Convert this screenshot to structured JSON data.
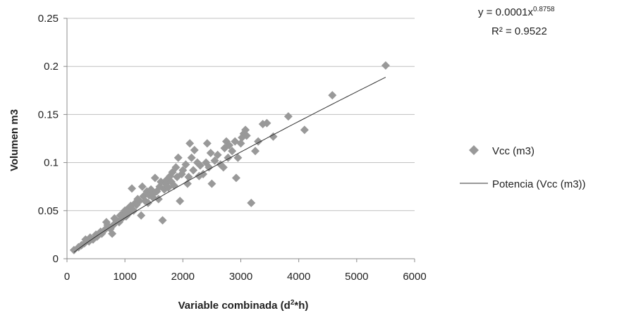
{
  "chart_data": {
    "type": "scatter",
    "title": "",
    "xlabel": "Variable combinada (d²*h)",
    "ylabel": "Volumen m3",
    "xlim": [
      0,
      6000
    ],
    "ylim": [
      0,
      0.25
    ],
    "xticks": [
      0,
      1000,
      2000,
      3000,
      4000,
      5000,
      6000
    ],
    "yticks": [
      0,
      0.05,
      0.1,
      0.15,
      0.2,
      0.25
    ],
    "xtick_labels": [
      "0",
      "1000",
      "2000",
      "3000",
      "4000",
      "5000",
      "6000"
    ],
    "ytick_labels": [
      "0",
      "0.05",
      "0.1",
      "0.15",
      "0.2",
      "0.25"
    ],
    "grid": "horizontal",
    "legend_position": "right",
    "series": [
      {
        "name": "Vcc (m3)",
        "kind": "scatter",
        "marker": "diamond",
        "color": "#999999",
        "points": [
          [
            120,
            0.009
          ],
          [
            200,
            0.012
          ],
          [
            250,
            0.014
          ],
          [
            300,
            0.016
          ],
          [
            320,
            0.02
          ],
          [
            380,
            0.018
          ],
          [
            400,
            0.022
          ],
          [
            450,
            0.02
          ],
          [
            500,
            0.025
          ],
          [
            520,
            0.023
          ],
          [
            580,
            0.028
          ],
          [
            600,
            0.026
          ],
          [
            650,
            0.03
          ],
          [
            680,
            0.038
          ],
          [
            700,
            0.035
          ],
          [
            750,
            0.031
          ],
          [
            780,
            0.026
          ],
          [
            800,
            0.035
          ],
          [
            820,
            0.042
          ],
          [
            850,
            0.04
          ],
          [
            900,
            0.038
          ],
          [
            920,
            0.045
          ],
          [
            950,
            0.042
          ],
          [
            980,
            0.048
          ],
          [
            1000,
            0.05
          ],
          [
            1020,
            0.044
          ],
          [
            1050,
            0.052
          ],
          [
            1080,
            0.048
          ],
          [
            1100,
            0.055
          ],
          [
            1120,
            0.073
          ],
          [
            1150,
            0.05
          ],
          [
            1180,
            0.058
          ],
          [
            1200,
            0.056
          ],
          [
            1220,
            0.062
          ],
          [
            1250,
            0.06
          ],
          [
            1280,
            0.045
          ],
          [
            1300,
            0.075
          ],
          [
            1320,
            0.065
          ],
          [
            1350,
            0.06
          ],
          [
            1380,
            0.07
          ],
          [
            1400,
            0.058
          ],
          [
            1420,
            0.066
          ],
          [
            1450,
            0.072
          ],
          [
            1480,
            0.064
          ],
          [
            1500,
            0.068
          ],
          [
            1520,
            0.084
          ],
          [
            1550,
            0.07
          ],
          [
            1580,
            0.062
          ],
          [
            1600,
            0.075
          ],
          [
            1620,
            0.08
          ],
          [
            1650,
            0.04
          ],
          [
            1680,
            0.072
          ],
          [
            1700,
            0.078
          ],
          [
            1720,
            0.082
          ],
          [
            1750,
            0.074
          ],
          [
            1780,
            0.086
          ],
          [
            1800,
            0.08
          ],
          [
            1820,
            0.09
          ],
          [
            1850,
            0.076
          ],
          [
            1880,
            0.095
          ],
          [
            1900,
            0.085
          ],
          [
            1920,
            0.105
          ],
          [
            1950,
            0.06
          ],
          [
            1980,
            0.088
          ],
          [
            2000,
            0.092
          ],
          [
            2050,
            0.098
          ],
          [
            2080,
            0.078
          ],
          [
            2100,
            0.085
          ],
          [
            2120,
            0.12
          ],
          [
            2150,
            0.105
          ],
          [
            2180,
            0.092
          ],
          [
            2200,
            0.113
          ],
          [
            2250,
            0.1
          ],
          [
            2280,
            0.086
          ],
          [
            2300,
            0.097
          ],
          [
            2350,
            0.088
          ],
          [
            2400,
            0.1
          ],
          [
            2420,
            0.12
          ],
          [
            2450,
            0.095
          ],
          [
            2480,
            0.11
          ],
          [
            2500,
            0.078
          ],
          [
            2550,
            0.102
          ],
          [
            2600,
            0.108
          ],
          [
            2650,
            0.098
          ],
          [
            2700,
            0.095
          ],
          [
            2720,
            0.115
          ],
          [
            2750,
            0.122
          ],
          [
            2780,
            0.105
          ],
          [
            2800,
            0.118
          ],
          [
            2850,
            0.112
          ],
          [
            2900,
            0.122
          ],
          [
            2920,
            0.084
          ],
          [
            2950,
            0.105
          ],
          [
            3000,
            0.12
          ],
          [
            3020,
            0.126
          ],
          [
            3050,
            0.13
          ],
          [
            3080,
            0.134
          ],
          [
            3100,
            0.128
          ],
          [
            3180,
            0.058
          ],
          [
            3250,
            0.112
          ],
          [
            3300,
            0.122
          ],
          [
            3380,
            0.14
          ],
          [
            3450,
            0.141
          ],
          [
            3560,
            0.127
          ],
          [
            3820,
            0.148
          ],
          [
            4100,
            0.134
          ],
          [
            4580,
            0.17
          ],
          [
            5500,
            0.201
          ]
        ]
      },
      {
        "name": "Potencia (Vcc (m3))",
        "kind": "trendline",
        "color": "#333333",
        "function": "power",
        "coef": 0.0001,
        "exponent": 0.8758,
        "x_range": [
          120,
          5500
        ]
      }
    ],
    "annotations": {
      "equation_prefix": "y = 0.0001x",
      "equation_exponent": "0.8758",
      "r_squared": "R² = 0.9522"
    }
  }
}
